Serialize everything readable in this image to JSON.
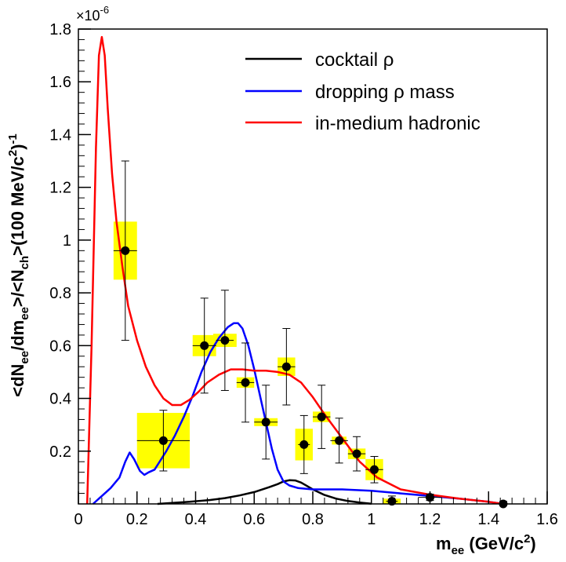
{
  "chart_data": {
    "type": "scatter",
    "title": "",
    "xlabel": "m_ee (GeV/c^2)",
    "xlabel_main": "m",
    "xlabel_sub": "ee",
    "xlabel_unit": " (GeV/c",
    "xlabel_unit_sup": "2",
    "xlabel_unit_close": ")",
    "ylabel": "<dN_ee/dm_ee>/<N_ch>(100 MeV/c^2)^-1",
    "ylabel_parts": {
      "p1": "<dN",
      "s1": "ee",
      "p2": "/dm",
      "s2": "ee",
      "p3": ">/<N",
      "s3": "ch",
      "p4": ">(100 MeV/c",
      "sup1": "2",
      "p5": ")",
      "sup2": "-1"
    },
    "multiplier_base": "×10",
    "multiplier_exp": "-6",
    "xlim": [
      0,
      1.6
    ],
    "ylim": [
      0,
      1.8
    ],
    "x_ticks": [
      0,
      0.2,
      0.4,
      0.6,
      0.8,
      1,
      1.2,
      1.4,
      1.6
    ],
    "x_tick_labels": [
      "0",
      "0.2",
      "0.4",
      "0.6",
      "0.8",
      "1",
      "1.2",
      "1.4",
      "1.6"
    ],
    "y_ticks": [
      0.2,
      0.4,
      0.6,
      0.8,
      1,
      1.2,
      1.4,
      1.6,
      1.8
    ],
    "y_tick_labels": [
      "0.2",
      "0.4",
      "0.6",
      "0.8",
      "1",
      "1.2",
      "1.4",
      "1.6",
      "1.8"
    ],
    "legend_position": "top-right",
    "legend": [
      {
        "name": "cocktail ρ",
        "color": "#000000"
      },
      {
        "name": "dropping ρ mass",
        "color": "#0000ff"
      },
      {
        "name": "in-medium hadronic",
        "color": "#ff0000"
      }
    ],
    "series": [
      {
        "name": "cocktail ρ",
        "color": "#000000",
        "x": [
          0.27,
          0.32,
          0.38,
          0.45,
          0.5,
          0.55,
          0.6,
          0.65,
          0.68,
          0.7,
          0.72,
          0.74,
          0.76,
          0.78,
          0.8,
          0.84,
          0.88,
          0.92,
          0.96,
          1.0
        ],
        "y": [
          0.0,
          0.004,
          0.008,
          0.015,
          0.022,
          0.032,
          0.045,
          0.063,
          0.075,
          0.085,
          0.09,
          0.089,
          0.081,
          0.068,
          0.055,
          0.034,
          0.02,
          0.011,
          0.005,
          0.001
        ]
      },
      {
        "name": "dropping ρ mass",
        "color": "#0000ff",
        "x": [
          0.05,
          0.08,
          0.11,
          0.14,
          0.16,
          0.175,
          0.19,
          0.21,
          0.225,
          0.24,
          0.26,
          0.28,
          0.3,
          0.33,
          0.36,
          0.39,
          0.42,
          0.45,
          0.48,
          0.51,
          0.53,
          0.545,
          0.56,
          0.58,
          0.6,
          0.62,
          0.64,
          0.66,
          0.68,
          0.7,
          0.72,
          0.75,
          0.8,
          0.85,
          0.9,
          1.0,
          1.1,
          1.2,
          1.3,
          1.4,
          1.45
        ],
        "y": [
          0.0,
          0.03,
          0.06,
          0.1,
          0.16,
          0.195,
          0.17,
          0.125,
          0.11,
          0.12,
          0.13,
          0.165,
          0.2,
          0.26,
          0.33,
          0.41,
          0.5,
          0.575,
          0.63,
          0.67,
          0.685,
          0.685,
          0.665,
          0.6,
          0.51,
          0.41,
          0.31,
          0.21,
          0.13,
          0.085,
          0.07,
          0.06,
          0.055,
          0.055,
          0.055,
          0.05,
          0.04,
          0.03,
          0.02,
          0.008,
          0.0
        ]
      },
      {
        "name": "in-medium hadronic",
        "color": "#ff0000",
        "x": [
          0.03,
          0.045,
          0.06,
          0.07,
          0.08,
          0.09,
          0.1,
          0.115,
          0.13,
          0.15,
          0.17,
          0.2,
          0.23,
          0.26,
          0.29,
          0.32,
          0.35,
          0.38,
          0.41,
          0.44,
          0.48,
          0.52,
          0.56,
          0.6,
          0.64,
          0.68,
          0.72,
          0.76,
          0.8,
          0.84,
          0.9,
          0.96,
          1.02,
          1.1,
          1.2,
          1.3,
          1.4,
          1.45
        ],
        "y": [
          0.0,
          0.6,
          1.35,
          1.7,
          1.77,
          1.7,
          1.5,
          1.25,
          1.07,
          0.9,
          0.75,
          0.62,
          0.52,
          0.45,
          0.4,
          0.375,
          0.375,
          0.395,
          0.425,
          0.46,
          0.49,
          0.51,
          0.51,
          0.505,
          0.505,
          0.5,
          0.49,
          0.46,
          0.405,
          0.34,
          0.25,
          0.16,
          0.1,
          0.055,
          0.035,
          0.02,
          0.008,
          0.0
        ]
      }
    ],
    "data_points": [
      {
        "x": 0.16,
        "y": 0.96,
        "xerr": 0.04,
        "stat": 0.34,
        "sys_x": 0.04,
        "sys_y": 0.11
      },
      {
        "x": 0.29,
        "y": 0.24,
        "xerr": 0.09,
        "stat": 0.115,
        "sys_x": 0.09,
        "sys_y": 0.105
      },
      {
        "x": 0.43,
        "y": 0.6,
        "xerr": 0.04,
        "stat": 0.18,
        "sys_x": 0.04,
        "sys_y": 0.04
      },
      {
        "x": 0.5,
        "y": 0.62,
        "xerr": 0.03,
        "stat": 0.19,
        "sys_x": 0.04,
        "sys_y": 0.025
      },
      {
        "x": 0.57,
        "y": 0.46,
        "xerr": 0.03,
        "stat": 0.15,
        "sys_x": 0.03,
        "sys_y": 0.02
      },
      {
        "x": 0.64,
        "y": 0.31,
        "xerr": 0.04,
        "stat": 0.14,
        "sys_x": 0.04,
        "sys_y": 0.015
      },
      {
        "x": 0.71,
        "y": 0.52,
        "xerr": 0.03,
        "stat": 0.145,
        "sys_x": 0.03,
        "sys_y": 0.035
      },
      {
        "x": 0.77,
        "y": 0.225,
        "xerr": 0.02,
        "stat": 0.11,
        "sys_x": 0.03,
        "sys_y": 0.06
      },
      {
        "x": 0.83,
        "y": 0.33,
        "xerr": 0.03,
        "stat": 0.12,
        "sys_x": 0.03,
        "sys_y": 0.02
      },
      {
        "x": 0.89,
        "y": 0.24,
        "xerr": 0.03,
        "stat": 0.085,
        "sys_x": 0.025,
        "sys_y": 0.015
      },
      {
        "x": 0.95,
        "y": 0.19,
        "xerr": 0.03,
        "stat": 0.065,
        "sys_x": 0.03,
        "sys_y": 0.02
      },
      {
        "x": 1.01,
        "y": 0.13,
        "xerr": 0.03,
        "stat": 0.05,
        "sys_x": 0.03,
        "sys_y": 0.04
      },
      {
        "x": 1.07,
        "y": 0.01,
        "xerr": 0.02,
        "stat": 0.02,
        "sys_x": 0.03,
        "sys_y": 0.01
      },
      {
        "x": 1.2,
        "y": 0.025,
        "xerr": 0.04,
        "stat": 0.012,
        "sys_x": 0.015,
        "sys_y": 0.005
      },
      {
        "x": 1.45,
        "y": 0.0,
        "xerr": 0.03,
        "stat": 0.01,
        "sys_x": 0.015,
        "sys_y": 0.003
      }
    ],
    "colors": {
      "band": "#ffff00",
      "marker": "#000000",
      "axis": "#000000"
    }
  }
}
